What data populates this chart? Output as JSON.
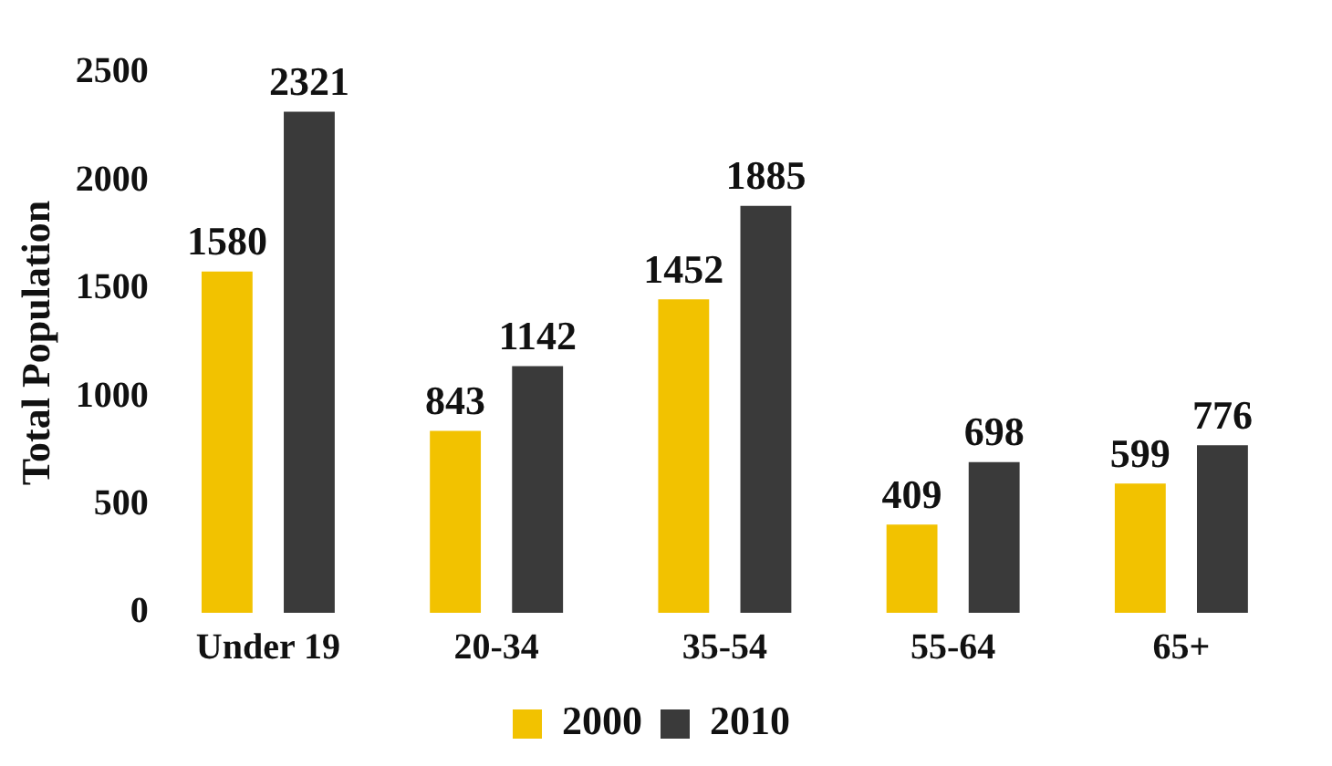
{
  "chart_data": {
    "type": "bar",
    "ylabel": "Total Population",
    "categories": [
      "Under 19",
      "20-34",
      "35-54",
      "55-64",
      "65+"
    ],
    "series": [
      {
        "name": "2000",
        "color": "#f2c200",
        "values": [
          1580,
          843,
          1452,
          409,
          599
        ]
      },
      {
        "name": "2010",
        "color": "#3a3a3a",
        "values": [
          2321,
          1142,
          1885,
          698,
          776
        ]
      }
    ],
    "ylim": [
      0,
      2500
    ],
    "yticks": [
      0,
      500,
      1000,
      1500,
      2000,
      2500
    ],
    "grid": false,
    "legend": "bottom",
    "data_labels": true
  }
}
